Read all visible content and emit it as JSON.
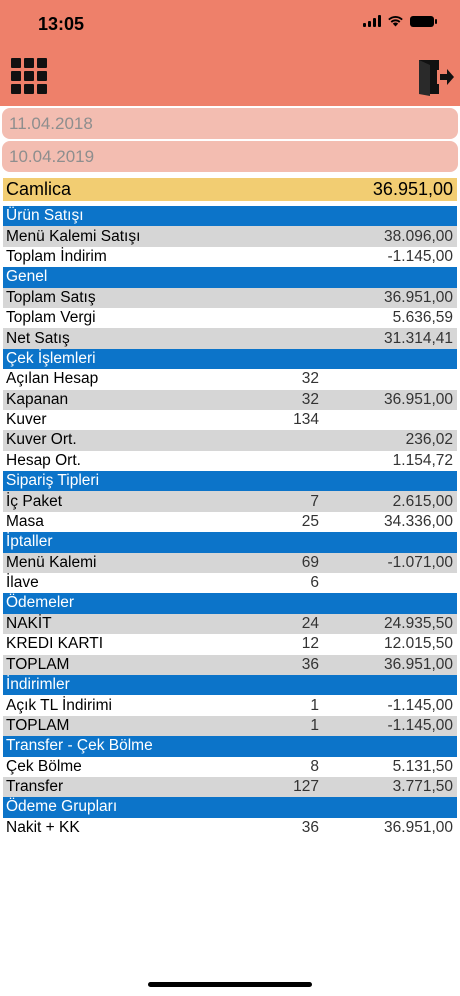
{
  "status_bar": {
    "time": "13:05"
  },
  "dates": {
    "start": "11.04.2018",
    "end": "10.04.2019"
  },
  "branch": {
    "name": "Camlica",
    "total": "36.951,00"
  },
  "colors": {
    "header": "#ee806a",
    "date_field": "#f3bdb1",
    "branch_bar": "#f2cd72",
    "section": "#0c74c9",
    "shaded_row": "#d6d6d6"
  },
  "icons": {
    "menu": "grid-icon",
    "logout": "logout-icon"
  },
  "sections": [
    {
      "title": "Ürün Satışı",
      "rows": [
        {
          "label": "Menü Kalemi Satışı",
          "count": "",
          "amount": "38.096,00"
        },
        {
          "label": "Toplam İndirim",
          "count": "",
          "amount": "-1.145,00"
        }
      ]
    },
    {
      "title": "Genel",
      "rows": [
        {
          "label": "Toplam Satış",
          "count": "",
          "amount": "36.951,00"
        },
        {
          "label": "Toplam Vergi",
          "count": "",
          "amount": "5.636,59"
        },
        {
          "label": "Net Satış",
          "count": "",
          "amount": "31.314,41"
        }
      ]
    },
    {
      "title": "Çek İşlemleri",
      "rows": [
        {
          "label": "Açılan Hesap",
          "count": "32",
          "amount": ""
        },
        {
          "label": "Kapanan",
          "count": "32",
          "amount": "36.951,00"
        },
        {
          "label": "Kuver",
          "count": "134",
          "amount": ""
        },
        {
          "label": "Kuver Ort.",
          "count": "",
          "amount": "236,02"
        },
        {
          "label": "Hesap Ort.",
          "count": "",
          "amount": "1.154,72"
        }
      ]
    },
    {
      "title": "Sipariş Tipleri",
      "rows": [
        {
          "label": "İç Paket",
          "count": "7",
          "amount": "2.615,00"
        },
        {
          "label": "Masa",
          "count": "25",
          "amount": "34.336,00"
        }
      ]
    },
    {
      "title": "İptaller",
      "rows": [
        {
          "label": "Menü Kalemi",
          "count": "69",
          "amount": "-1.071,00"
        },
        {
          "label": "İlave",
          "count": "6",
          "amount": ""
        }
      ]
    },
    {
      "title": "Ödemeler",
      "rows": [
        {
          "label": "NAKİT",
          "count": "24",
          "amount": "24.935,50"
        },
        {
          "label": "KREDI KARTI",
          "count": "12",
          "amount": "12.015,50"
        },
        {
          "label": "TOPLAM",
          "count": "36",
          "amount": "36.951,00"
        }
      ]
    },
    {
      "title": "İndirimler",
      "rows": [
        {
          "label": "Açık TL İndirimi",
          "count": "1",
          "amount": "-1.145,00"
        },
        {
          "label": "TOPLAM",
          "count": "1",
          "amount": "-1.145,00"
        }
      ]
    },
    {
      "title": "Transfer - Çek Bölme",
      "rows": [
        {
          "label": "Çek Bölme",
          "count": "8",
          "amount": "5.131,50"
        },
        {
          "label": "Transfer",
          "count": "127",
          "amount": "3.771,50"
        }
      ]
    },
    {
      "title": "Ödeme Grupları",
      "rows": [
        {
          "label": "Nakit + KK",
          "count": "36",
          "amount": "36.951,00"
        }
      ]
    }
  ]
}
